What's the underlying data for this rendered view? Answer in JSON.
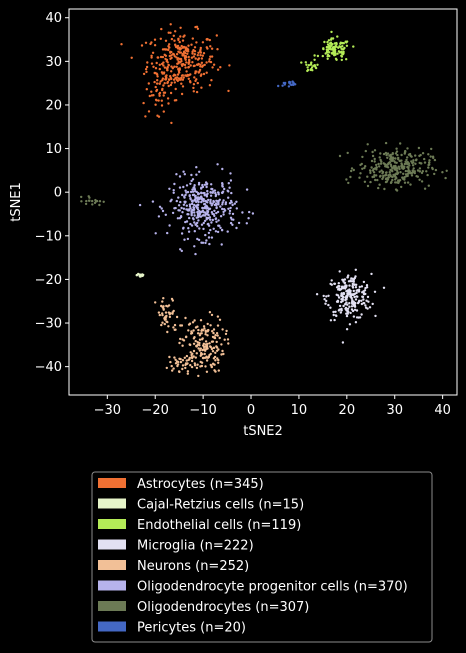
{
  "chart_data": {
    "type": "scatter",
    "title": "",
    "xlabel": "tSNE2",
    "ylabel": "tSNE1",
    "xlim": [
      -38,
      43
    ],
    "ylim": [
      -46.5,
      42
    ],
    "xticks": [
      -30,
      -20,
      -10,
      0,
      10,
      20,
      30,
      40
    ],
    "yticks": [
      -40,
      -30,
      -20,
      -10,
      0,
      10,
      20,
      30,
      40
    ],
    "grid": false,
    "legend_position": "below-center",
    "series": [
      {
        "name": "Astrocytes (n=345)",
        "color": "#f07033",
        "clusters": [
          {
            "n": 300,
            "cx": -14.5,
            "cy": 30,
            "sx": 3.6,
            "sy": 3.4
          },
          {
            "n": 25,
            "cx": -20,
            "cy": 21,
            "sx": 1.5,
            "sy": 2.0
          },
          {
            "n": 20,
            "cx": -18,
            "cy": 25,
            "sx": 1.2,
            "sy": 1.5
          }
        ]
      },
      {
        "name": "Cajal-Retzius cells (n=15)",
        "color": "#e6f5c9",
        "clusters": [
          {
            "n": 15,
            "cx": -23,
            "cy": -19,
            "sx": 0.4,
            "sy": 0.3
          }
        ]
      },
      {
        "name": "Endothelial cells (n=119)",
        "color": "#b4eb57",
        "clusters": [
          {
            "n": 100,
            "cx": 17.5,
            "cy": 32.5,
            "sx": 1.6,
            "sy": 1.3
          },
          {
            "n": 19,
            "cx": 12.5,
            "cy": 29,
            "sx": 0.7,
            "sy": 0.7
          }
        ]
      },
      {
        "name": "Microglia (n=222)",
        "color": "#e3e1f3",
        "clusters": [
          {
            "n": 222,
            "cx": 20.5,
            "cy": -24,
            "sx": 2.3,
            "sy": 2.6
          }
        ]
      },
      {
        "name": "Neurons (n=252)",
        "color": "#f2c097",
        "clusters": [
          {
            "n": 170,
            "cx": -10,
            "cy": -35,
            "sx": 2.2,
            "sy": 3.2
          },
          {
            "n": 45,
            "cx": -17.5,
            "cy": -28.5,
            "sx": 1.2,
            "sy": 2.2
          },
          {
            "n": 37,
            "cx": -14,
            "cy": -39,
            "sx": 1.6,
            "sy": 1.0
          }
        ]
      },
      {
        "name": "Oligodendrocyte progenitor cells (n=370)",
        "color": "#b7b3ec",
        "clusters": [
          {
            "n": 370,
            "cx": -10,
            "cy": -3.5,
            "sx": 3.5,
            "sy": 3.4
          }
        ]
      },
      {
        "name": "Oligodendrocytes (n=307)",
        "color": "#6c7a55",
        "clusters": [
          {
            "n": 290,
            "cx": 30,
            "cy": 5.5,
            "sx": 3.8,
            "sy": 2.2
          },
          {
            "n": 17,
            "cx": -33,
            "cy": -2,
            "sx": 1.0,
            "sy": 0.5
          }
        ]
      },
      {
        "name": "Pericytes (n=20)",
        "color": "#4468c4",
        "clusters": [
          {
            "n": 20,
            "cx": 8,
            "cy": 24.8,
            "sx": 0.7,
            "sy": 0.3
          }
        ]
      }
    ]
  }
}
